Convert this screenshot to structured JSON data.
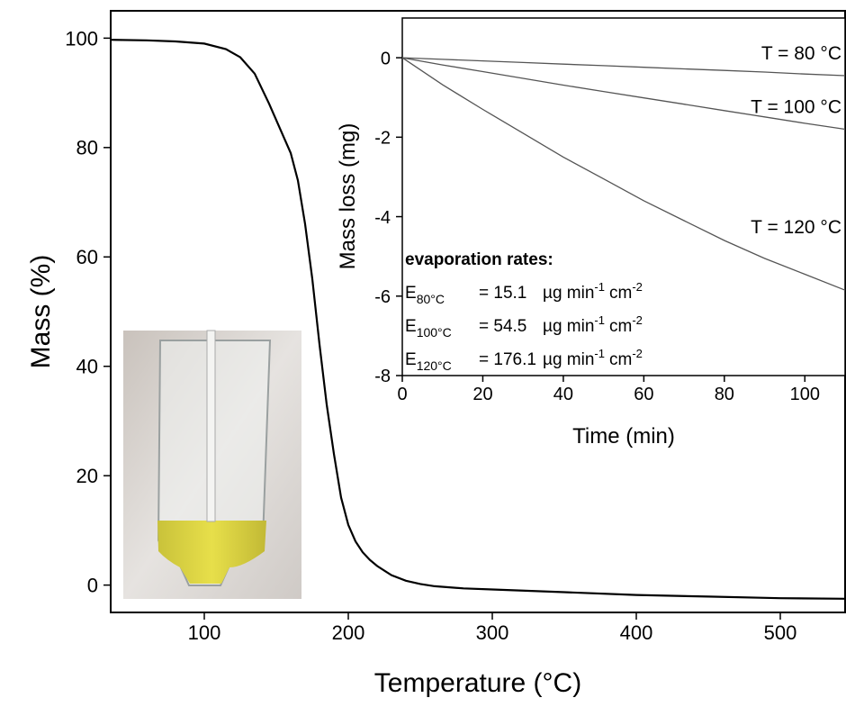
{
  "chart_data": [
    {
      "type": "line",
      "xlabel": "Temperature (°C)",
      "ylabel": "Mass (%)",
      "x": [
        35,
        60,
        80,
        100,
        115,
        125,
        135,
        145,
        155,
        160,
        165,
        170,
        175,
        180,
        185,
        190,
        195,
        200,
        205,
        210,
        215,
        220,
        230,
        240,
        250,
        260,
        280,
        300,
        350,
        400,
        450,
        500,
        545
      ],
      "series": [
        {
          "color": "#000000",
          "values": [
            99.7,
            99.6,
            99.4,
            99,
            98,
            96.5,
            93.5,
            88,
            82,
            79,
            74,
            66,
            56,
            44,
            33,
            24,
            16,
            11,
            8,
            6,
            4.6,
            3.5,
            1.8,
            0.8,
            0.2,
            -0.2,
            -0.6,
            -0.8,
            -1.3,
            -1.8,
            -2.1,
            -2.4,
            -2.5
          ]
        }
      ],
      "xlim": [
        35,
        545
      ],
      "ylim": [
        -5,
        105
      ],
      "xticks": [
        100,
        200,
        300,
        400,
        500
      ],
      "yticks": [
        0,
        20,
        40,
        60,
        80,
        100
      ]
    },
    {
      "type": "line",
      "xlabel": "Time (min)",
      "ylabel": "Mass loss (mg)",
      "x": [
        0,
        10,
        20,
        30,
        40,
        50,
        60,
        70,
        80,
        90,
        100,
        110
      ],
      "series": [
        {
          "name": "T = 80 °C",
          "color": "#555555",
          "values": [
            0,
            -0.04,
            -0.08,
            -0.12,
            -0.16,
            -0.2,
            -0.24,
            -0.28,
            -0.32,
            -0.36,
            -0.41,
            -0.45
          ]
        },
        {
          "name": "T = 100 °C",
          "color": "#555555",
          "values": [
            0,
            -0.18,
            -0.35,
            -0.52,
            -0.69,
            -0.85,
            -1.01,
            -1.17,
            -1.33,
            -1.49,
            -1.65,
            -1.8
          ]
        },
        {
          "name": "T = 120 °C",
          "color": "#555555",
          "values": [
            0,
            -0.68,
            -1.3,
            -1.9,
            -2.5,
            -3.05,
            -3.6,
            -4.1,
            -4.6,
            -5.05,
            -5.45,
            -5.85
          ]
        }
      ],
      "xlim": [
        0,
        110
      ],
      "ylim": [
        -8,
        1
      ],
      "xticks": [
        0,
        20,
        40,
        60,
        80,
        100
      ],
      "yticks": [
        -8,
        -6,
        -4,
        -2,
        0
      ],
      "annotation_title": "evaporation rates:",
      "rates": [
        {
          "symbol": "E",
          "subscript": "80°C",
          "value": "= 15.1",
          "unit": "µg min",
          "exp1": "-1",
          "unit2": "cm",
          "exp2": "-2"
        },
        {
          "symbol": "E",
          "subscript": "100°C",
          "value": "= 54.5",
          "unit": "µg min",
          "exp1": "-1",
          "unit2": "cm",
          "exp2": "-2"
        },
        {
          "symbol": "E",
          "subscript": "120°C",
          "value": "= 176.1",
          "unit": "µg min",
          "exp1": "-1",
          "unit2": "cm",
          "exp2": "-2"
        }
      ]
    }
  ]
}
